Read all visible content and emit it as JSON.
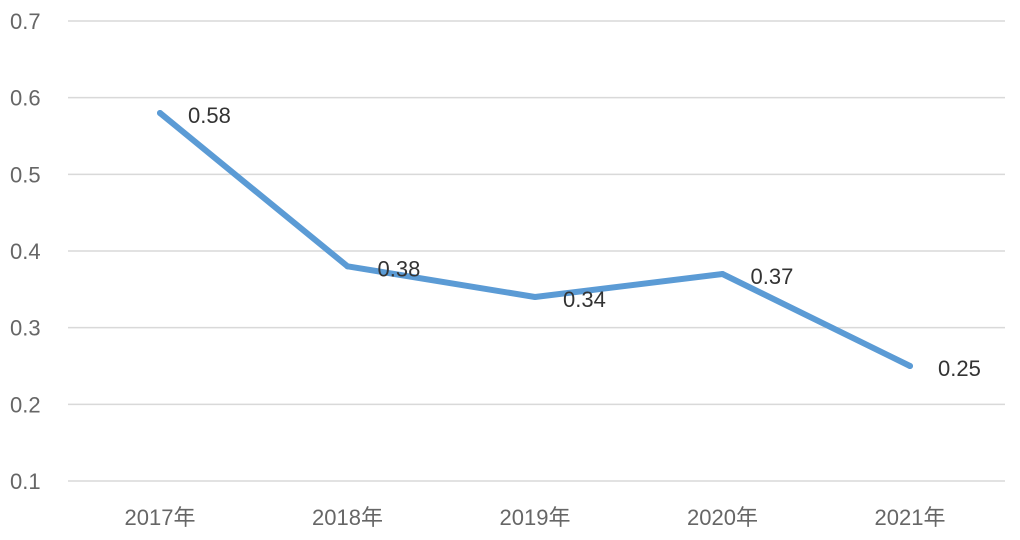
{
  "chart_data": {
    "type": "line",
    "categories": [
      "2017年",
      "2018年",
      "2019年",
      "2020年",
      "2021年"
    ],
    "series": [
      {
        "values": [
          0.58,
          0.38,
          0.34,
          0.37,
          0.25
        ],
        "color": "#5b9bd5"
      }
    ],
    "data_labels": [
      "0.58",
      "0.38",
      "0.34",
      "0.37",
      "0.25"
    ],
    "y_ticks": [
      "0.1",
      "0.2",
      "0.3",
      "0.4",
      "0.5",
      "0.6",
      "0.7"
    ],
    "ylim": [
      0.1,
      0.7
    ],
    "grid": true,
    "legend": "none"
  }
}
